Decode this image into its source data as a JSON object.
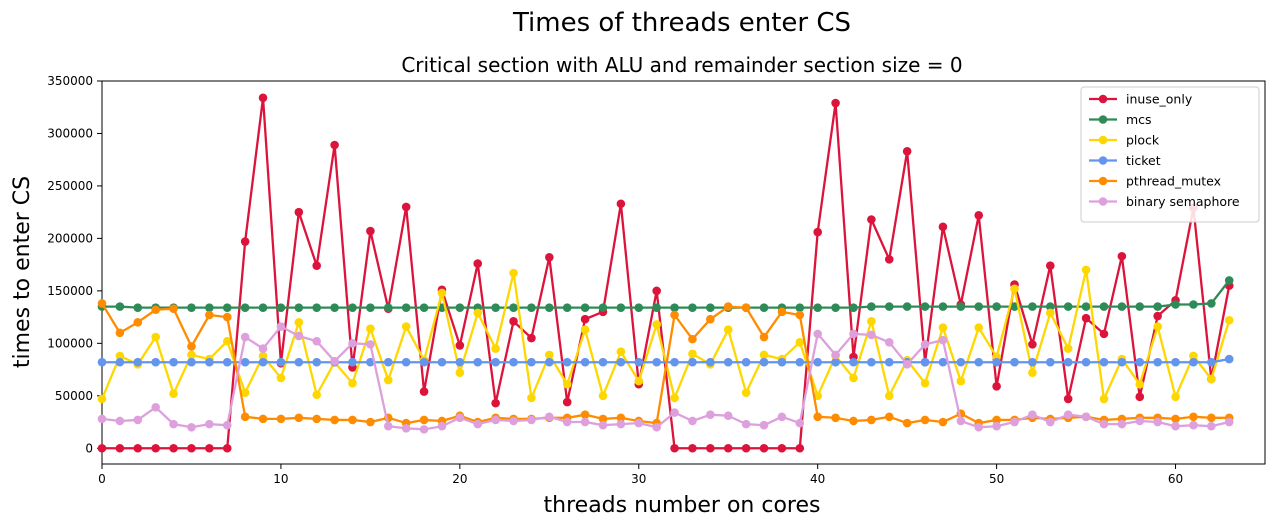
{
  "chart_data": {
    "type": "line",
    "title": "Times of threads enter CS",
    "subtitle": "Critical section with ALU and remainder section size = 0",
    "xlabel": "threads number on cores",
    "ylabel": "times to enter CS",
    "xlim": [
      0,
      65
    ],
    "ylim": [
      -15000,
      350000
    ],
    "xticks": [
      0,
      10,
      20,
      30,
      40,
      50,
      60
    ],
    "yticks": [
      0,
      50000,
      100000,
      150000,
      200000,
      250000,
      300000,
      350000
    ],
    "grid": false,
    "legend": "top-right",
    "x": [
      0,
      1,
      2,
      3,
      4,
      5,
      6,
      7,
      8,
      9,
      10,
      11,
      12,
      13,
      14,
      15,
      16,
      17,
      18,
      19,
      20,
      21,
      22,
      23,
      24,
      25,
      26,
      27,
      28,
      29,
      30,
      31,
      32,
      33,
      34,
      35,
      36,
      37,
      38,
      39,
      40,
      41,
      42,
      43,
      44,
      45,
      46,
      47,
      48,
      49,
      50,
      51,
      52,
      53,
      54,
      55,
      56,
      57,
      58,
      59,
      60,
      61,
      62,
      63
    ],
    "series": [
      {
        "name": "inuse_only",
        "color": "#dc143c",
        "values": [
          0,
          0,
          0,
          0,
          0,
          0,
          0,
          0,
          197000,
          334000,
          81000,
          225000,
          174000,
          289000,
          77000,
          207000,
          133000,
          230000,
          54000,
          151000,
          98000,
          176000,
          43000,
          121000,
          105000,
          182000,
          44000,
          123000,
          130000,
          233000,
          61000,
          150000,
          0,
          0,
          0,
          0,
          0,
          0,
          0,
          0,
          206000,
          329000,
          87000,
          218000,
          180000,
          283000,
          82000,
          211000,
          137000,
          222000,
          59000,
          156000,
          99000,
          174000,
          47000,
          124000,
          109000,
          183000,
          49000,
          126000,
          141000,
          229000,
          66000,
          155000
        ]
      },
      {
        "name": "mcs",
        "color": "#2e8b57",
        "values": [
          135000,
          135000,
          134000,
          134000,
          134000,
          134000,
          134000,
          134000,
          134000,
          134000,
          134000,
          134000,
          134000,
          134000,
          134000,
          134000,
          134000,
          134000,
          134000,
          134000,
          134000,
          134000,
          134000,
          134000,
          134000,
          134000,
          134000,
          134000,
          134000,
          134000,
          134000,
          134000,
          134000,
          134000,
          134000,
          134000,
          134000,
          134000,
          134000,
          134000,
          134000,
          134000,
          134000,
          135000,
          135000,
          135000,
          135000,
          135000,
          135000,
          135000,
          135000,
          135000,
          135000,
          135000,
          135000,
          135000,
          135000,
          135000,
          135000,
          135000,
          137000,
          137000,
          138000,
          160000
        ]
      },
      {
        "name": "plock",
        "color": "#ffd700",
        "values": [
          47000,
          88000,
          80000,
          106000,
          52000,
          89000,
          85000,
          102000,
          53000,
          88000,
          67000,
          120000,
          51000,
          82000,
          62000,
          114000,
          65000,
          116000,
          84000,
          148000,
          72000,
          129000,
          95000,
          167000,
          48000,
          89000,
          61000,
          113000,
          50000,
          92000,
          64000,
          118000,
          48000,
          90000,
          80000,
          113000,
          53000,
          89000,
          85000,
          101000,
          50000,
          88000,
          67000,
          121000,
          50000,
          84000,
          62000,
          115000,
          64000,
          115000,
          87000,
          152000,
          72000,
          129000,
          95000,
          170000,
          47000,
          85000,
          61000,
          116000,
          49000,
          88000,
          66000,
          122000
        ]
      },
      {
        "name": "ticket",
        "color": "#6495ed",
        "values": [
          82000,
          82000,
          82000,
          82000,
          82000,
          82000,
          82000,
          82000,
          82000,
          82000,
          82000,
          82000,
          82000,
          82000,
          82000,
          82000,
          82000,
          82000,
          82000,
          82000,
          82000,
          82000,
          82000,
          82000,
          82000,
          82000,
          82000,
          82000,
          82000,
          82000,
          82000,
          82000,
          82000,
          82000,
          82000,
          82000,
          82000,
          82000,
          82000,
          82000,
          82000,
          82000,
          82000,
          82000,
          82000,
          82000,
          82000,
          82000,
          82000,
          82000,
          82000,
          82000,
          82000,
          82000,
          82000,
          82000,
          82000,
          82000,
          82000,
          82000,
          82000,
          82000,
          82000,
          85000
        ]
      },
      {
        "name": "pthread_mutex",
        "color": "#ff8c00",
        "values": [
          138000,
          110000,
          120000,
          132000,
          133000,
          97000,
          127000,
          125000,
          30000,
          28000,
          28000,
          29000,
          28000,
          27000,
          27000,
          25000,
          29000,
          24000,
          27000,
          26000,
          31000,
          25000,
          29000,
          28000,
          28000,
          29000,
          29000,
          32000,
          28000,
          29000,
          26000,
          24000,
          127000,
          104000,
          123000,
          135000,
          134000,
          106000,
          130000,
          127000,
          30000,
          29000,
          26000,
          27000,
          30000,
          24000,
          27000,
          25000,
          33000,
          24000,
          27000,
          27000,
          29000,
          28000,
          29000,
          30000,
          27000,
          28000,
          29000,
          29000,
          28000,
          30000,
          29000,
          29000
        ]
      },
      {
        "name": "binary semaphore",
        "color": "#dda0dd",
        "values": [
          28000,
          26000,
          27000,
          39000,
          23000,
          20000,
          23000,
          22000,
          106000,
          95000,
          116000,
          107000,
          102000,
          83000,
          100000,
          99000,
          21000,
          19000,
          18000,
          21000,
          29000,
          23000,
          27000,
          26000,
          27000,
          30000,
          25000,
          25000,
          22000,
          23000,
          24000,
          20000,
          34000,
          26000,
          32000,
          31000,
          23000,
          22000,
          30000,
          24000,
          109000,
          89000,
          109000,
          108000,
          101000,
          80000,
          99000,
          103000,
          26000,
          20000,
          21000,
          25000,
          32000,
          25000,
          32000,
          30000,
          23000,
          23000,
          26000,
          25000,
          21000,
          22000,
          21000,
          25000
        ]
      }
    ]
  }
}
